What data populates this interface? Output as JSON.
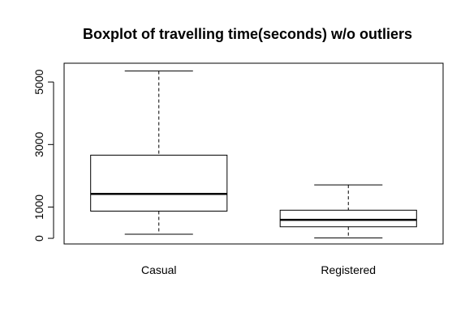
{
  "chart_data": {
    "type": "boxplot",
    "title": "Boxplot of travelling time(seconds) w/o outliers",
    "xlabel": "",
    "ylabel": "",
    "ylim": [
      -180,
      5600
    ],
    "y_ticks": [
      0,
      1000,
      3000,
      5000
    ],
    "categories": [
      "Casual",
      "Registered"
    ],
    "boxes": [
      {
        "category": "Casual",
        "whisker_low": 130,
        "q1": 870,
        "median": 1420,
        "q3": 2660,
        "whisker_high": 5350
      },
      {
        "category": "Registered",
        "whisker_low": 10,
        "q1": 370,
        "median": 590,
        "q3": 900,
        "whisker_high": 1710
      }
    ],
    "grid": false,
    "legend": "none"
  }
}
